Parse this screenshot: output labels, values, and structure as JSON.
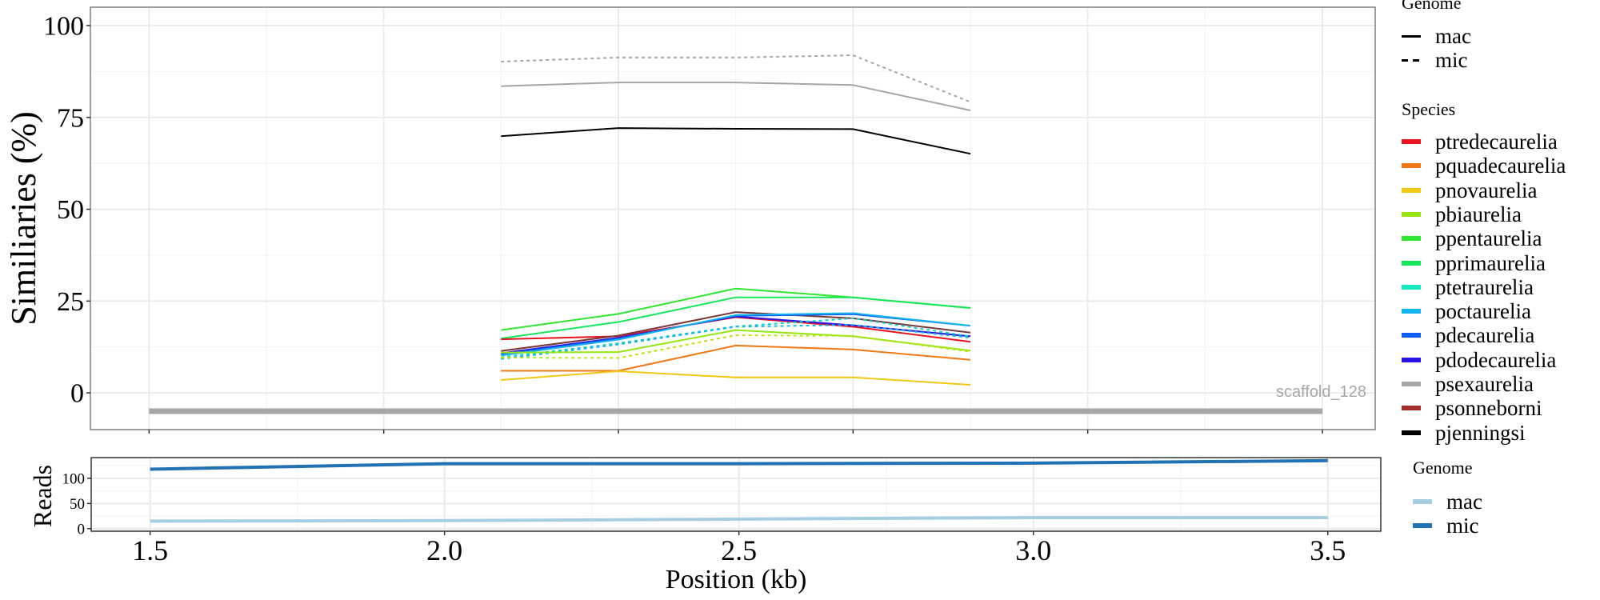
{
  "chart_data": [
    {
      "type": "line",
      "panel": "top",
      "title": "",
      "xlabel": "",
      "ylabel": "Similiaries (%)",
      "xlim": [
        1.4,
        3.59
      ],
      "ylim": [
        -10,
        105
      ],
      "xticks": [
        1.5,
        1.9,
        2.3,
        2.7,
        3.1,
        3.5
      ],
      "xtick_labels_shown": false,
      "yticks": [
        0,
        25,
        50,
        75,
        100
      ],
      "ytick_labels": [
        "0",
        "25",
        "50",
        "75",
        "100"
      ],
      "grid": true,
      "x": [
        2.1,
        2.3,
        2.5,
        2.7,
        2.9
      ],
      "series": [
        {
          "name": "psexaurelia",
          "genome": "mic",
          "color": "#a6a6a6",
          "values": [
            90.2,
            91.3,
            91.3,
            91.9,
            79.2
          ]
        },
        {
          "name": "psexaurelia",
          "genome": "mac",
          "color": "#a6a6a6",
          "values": [
            83.5,
            84.5,
            84.5,
            83.8,
            76.9
          ]
        },
        {
          "name": "pjenningsi",
          "genome": "mac",
          "color": "#000000",
          "values": [
            69.9,
            72.1,
            71.9,
            71.8,
            65.1
          ]
        },
        {
          "name": "ppentaurelia",
          "genome": "mac",
          "color": "#2ee62e",
          "values": [
            17.1,
            21.5,
            28.4,
            26.0,
            23.1
          ]
        },
        {
          "name": "pprimaurelia",
          "genome": "mac",
          "color": "#14e85a",
          "values": [
            14.8,
            19.3,
            26.0,
            26.0,
            23.1
          ]
        },
        {
          "name": "ptredecaurelia",
          "genome": "mac",
          "color": "#e8141e",
          "values": [
            14.6,
            15.4,
            20.6,
            18.0,
            13.9
          ]
        },
        {
          "name": "psonneborni",
          "genome": "mac",
          "color": "#7a3a3a",
          "values": [
            11.4,
            15.6,
            22.0,
            20.3,
            16.4
          ]
        },
        {
          "name": "pdodecaurelia",
          "genome": "mac",
          "color": "#2814e8",
          "values": [
            10.8,
            15.0,
            20.8,
            18.4,
            15.4
          ]
        },
        {
          "name": "pdecaurelia",
          "genome": "mac",
          "color": "#0f5af0",
          "values": [
            10.5,
            14.8,
            21.0,
            21.4,
            18.3
          ]
        },
        {
          "name": "poctaurelia",
          "genome": "mac",
          "color": "#14b4f0",
          "values": [
            10.2,
            14.5,
            21.2,
            21.7,
            18.3
          ]
        },
        {
          "name": "ptetraurelia",
          "genome": "mic",
          "color": "#14d2c8",
          "values": [
            9.7,
            13.5,
            18.1,
            20.3,
            15.4
          ]
        },
        {
          "name": "poctaurelia",
          "genome": "mic",
          "color": "#14b4f0",
          "values": [
            9.2,
            13.2,
            18.0,
            18.5,
            15.0
          ]
        },
        {
          "name": "pbiaurelia",
          "genome": "mac",
          "color": "#96e614",
          "values": [
            11.0,
            11.1,
            17.1,
            15.4,
            11.5
          ]
        },
        {
          "name": "pbiaurelia",
          "genome": "mic",
          "color": "#b4e614",
          "values": [
            9.6,
            9.5,
            15.7,
            15.5,
            11.2
          ]
        },
        {
          "name": "pquadecaurelia",
          "genome": "mac",
          "color": "#f07814",
          "values": [
            6.0,
            6.0,
            12.9,
            11.8,
            9.0
          ]
        },
        {
          "name": "pnovaurelia",
          "genome": "mac",
          "color": "#f0c814",
          "values": [
            3.5,
            5.9,
            4.2,
            4.2,
            2.2
          ]
        }
      ],
      "annotations": [
        {
          "type": "segment",
          "label": "scaffold_128",
          "x": [
            1.5,
            3.5
          ],
          "y": -5,
          "color": "#a6a6a6"
        }
      ]
    },
    {
      "type": "line",
      "panel": "bottom",
      "title": "",
      "xlabel": "Position (kb)",
      "ylabel": "Reads",
      "xlim": [
        1.4,
        3.59
      ],
      "ylim": [
        -5,
        141
      ],
      "xticks": [
        1.5,
        2.0,
        2.5,
        3.0,
        3.5
      ],
      "xtick_labels": [
        "1.5",
        "2.0",
        "2.5",
        "3.0",
        "3.5"
      ],
      "yticks": [
        0,
        50,
        100
      ],
      "ytick_labels": [
        "0",
        "50",
        "100"
      ],
      "grid": true,
      "x": [
        1.5,
        2.0,
        2.5,
        3.0,
        3.5
      ],
      "series": [
        {
          "name": "mic",
          "color": "#2171b5",
          "values": [
            118,
            129,
            129,
            130,
            135
          ]
        },
        {
          "name": "mac",
          "color": "#a6cee3",
          "values": [
            15,
            16,
            19,
            22,
            22
          ]
        }
      ]
    }
  ],
  "legends": {
    "genome_linetype": {
      "title": "Genome",
      "items": [
        {
          "label": "mac",
          "style": "solid"
        },
        {
          "label": "mic",
          "style": "dashed"
        }
      ]
    },
    "species": {
      "title": "Species",
      "items": [
        {
          "label": "ptredecaurelia",
          "color": "#e8141e"
        },
        {
          "label": "pquadecaurelia",
          "color": "#f07814"
        },
        {
          "label": "pnovaurelia",
          "color": "#f0c814"
        },
        {
          "label": "pbiaurelia",
          "color": "#96e614"
        },
        {
          "label": "ppentaurelia",
          "color": "#2ee62e"
        },
        {
          "label": "pprimaurelia",
          "color": "#14e85a"
        },
        {
          "label": "ptetraurelia",
          "color": "#14e8c0"
        },
        {
          "label": "poctaurelia",
          "color": "#14b4f0"
        },
        {
          "label": "pdecaurelia",
          "color": "#0f5af0"
        },
        {
          "label": "pdodecaurelia",
          "color": "#2814e8"
        },
        {
          "label": "psexaurelia",
          "color": "#a6a6a6"
        },
        {
          "label": "psonneborni",
          "color": "#a52a2a"
        },
        {
          "label": "pjenningsi",
          "color": "#000000"
        }
      ]
    },
    "genome_reads": {
      "title": "Genome",
      "items": [
        {
          "label": "mac",
          "color": "#a6cee3"
        },
        {
          "label": "mic",
          "color": "#2171b5"
        }
      ]
    }
  }
}
